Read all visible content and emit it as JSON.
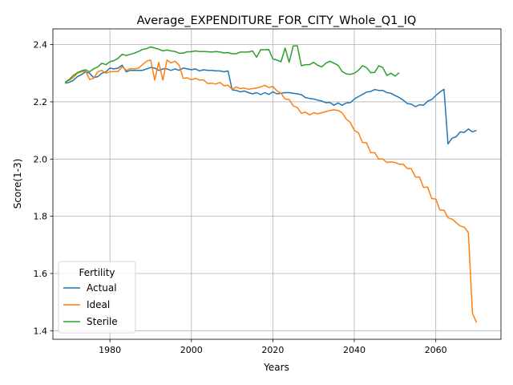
{
  "chart_data": {
    "type": "line",
    "title": "Average_EXPENDITURE_FOR_CITY_Whole_Q1_IQ",
    "xlabel": "Years",
    "ylabel": "Score(1-3)",
    "xlim": [
      1966,
      2076
    ],
    "ylim": [
      1.37,
      2.455
    ],
    "xticks": [
      1980,
      2000,
      2020,
      2040,
      2060
    ],
    "xtick_labels": [
      "1980",
      "2000",
      "2020",
      "2040",
      "2060"
    ],
    "yticks": [
      1.4,
      1.6,
      1.8,
      2.0,
      2.2,
      2.4
    ],
    "ytick_labels": [
      "1.4",
      "1.6",
      "1.8",
      "2.0",
      "2.2",
      "2.4"
    ],
    "grid": true,
    "legend": {
      "title": "Fertility",
      "position": "lower-left"
    },
    "series": [
      {
        "name": "Actual",
        "color": "#1f77b4",
        "points": [
          [
            1969,
            2.265
          ],
          [
            1970,
            2.268
          ],
          [
            1971,
            2.275
          ],
          [
            1972,
            2.288
          ],
          [
            1973,
            2.295
          ],
          [
            1974,
            2.305
          ],
          [
            1975,
            2.3
          ],
          [
            1976,
            2.285
          ],
          [
            1977,
            2.288
          ],
          [
            1978,
            2.3
          ],
          [
            1979,
            2.305
          ],
          [
            1980,
            2.318
          ],
          [
            1981,
            2.315
          ],
          [
            1982,
            2.318
          ],
          [
            1983,
            2.328
          ],
          [
            1984,
            2.305
          ],
          [
            1985,
            2.31
          ],
          [
            1986,
            2.31
          ],
          [
            1987,
            2.31
          ],
          [
            1988,
            2.31
          ],
          [
            1989,
            2.315
          ],
          [
            1990,
            2.32
          ],
          [
            1991,
            2.318
          ],
          [
            1992,
            2.31
          ],
          [
            1993,
            2.315
          ],
          [
            1994,
            2.315
          ],
          [
            1995,
            2.31
          ],
          [
            1996,
            2.315
          ],
          [
            1997,
            2.31
          ],
          [
            1998,
            2.318
          ],
          [
            1999,
            2.315
          ],
          [
            2000,
            2.312
          ],
          [
            2001,
            2.315
          ],
          [
            2002,
            2.308
          ],
          [
            2003,
            2.312
          ],
          [
            2004,
            2.31
          ],
          [
            2005,
            2.31
          ],
          [
            2006,
            2.308
          ],
          [
            2007,
            2.308
          ],
          [
            2008,
            2.305
          ],
          [
            2009,
            2.308
          ],
          [
            2010,
            2.242
          ],
          [
            2011,
            2.24
          ],
          [
            2012,
            2.235
          ],
          [
            2013,
            2.238
          ],
          [
            2014,
            2.232
          ],
          [
            2015,
            2.228
          ],
          [
            2016,
            2.232
          ],
          [
            2017,
            2.225
          ],
          [
            2018,
            2.232
          ],
          [
            2019,
            2.226
          ],
          [
            2020,
            2.235
          ],
          [
            2021,
            2.228
          ],
          [
            2022,
            2.23
          ],
          [
            2023,
            2.232
          ],
          [
            2024,
            2.232
          ],
          [
            2025,
            2.23
          ],
          [
            2026,
            2.228
          ],
          [
            2027,
            2.225
          ],
          [
            2028,
            2.215
          ],
          [
            2029,
            2.212
          ],
          [
            2030,
            2.21
          ],
          [
            2031,
            2.206
          ],
          [
            2032,
            2.203
          ],
          [
            2033,
            2.197
          ],
          [
            2034,
            2.198
          ],
          [
            2035,
            2.188
          ],
          [
            2036,
            2.196
          ],
          [
            2037,
            2.188
          ],
          [
            2038,
            2.196
          ],
          [
            2039,
            2.197
          ],
          [
            2040,
            2.21
          ],
          [
            2041,
            2.218
          ],
          [
            2042,
            2.226
          ],
          [
            2043,
            2.234
          ],
          [
            2044,
            2.236
          ],
          [
            2045,
            2.243
          ],
          [
            2046,
            2.24
          ],
          [
            2047,
            2.24
          ],
          [
            2048,
            2.232
          ],
          [
            2049,
            2.23
          ],
          [
            2050,
            2.222
          ],
          [
            2051,
            2.215
          ],
          [
            2052,
            2.206
          ],
          [
            2053,
            2.194
          ],
          [
            2054,
            2.192
          ],
          [
            2055,
            2.183
          ],
          [
            2056,
            2.19
          ],
          [
            2057,
            2.188
          ],
          [
            2058,
            2.202
          ],
          [
            2059,
            2.208
          ],
          [
            2060,
            2.222
          ],
          [
            2061,
            2.234
          ],
          [
            2062,
            2.244
          ],
          [
            2063,
            2.053
          ],
          [
            2064,
            2.073
          ],
          [
            2065,
            2.078
          ],
          [
            2066,
            2.095
          ],
          [
            2067,
            2.093
          ],
          [
            2068,
            2.105
          ],
          [
            2069,
            2.095
          ],
          [
            2070,
            2.1
          ]
        ]
      },
      {
        "name": "Ideal",
        "color": "#ff7f0e",
        "points": [
          [
            1969,
            2.27
          ],
          [
            1970,
            2.275
          ],
          [
            1971,
            2.285
          ],
          [
            1972,
            2.3
          ],
          [
            1973,
            2.305
          ],
          [
            1974,
            2.308
          ],
          [
            1975,
            2.278
          ],
          [
            1976,
            2.282
          ],
          [
            1977,
            2.305
          ],
          [
            1978,
            2.31
          ],
          [
            1979,
            2.3
          ],
          [
            1980,
            2.305
          ],
          [
            1981,
            2.306
          ],
          [
            1982,
            2.306
          ],
          [
            1983,
            2.323
          ],
          [
            1984,
            2.31
          ],
          [
            1985,
            2.316
          ],
          [
            1986,
            2.315
          ],
          [
            1987,
            2.318
          ],
          [
            1988,
            2.33
          ],
          [
            1989,
            2.342
          ],
          [
            1990,
            2.346
          ],
          [
            1991,
            2.276
          ],
          [
            1992,
            2.338
          ],
          [
            1993,
            2.276
          ],
          [
            1994,
            2.346
          ],
          [
            1995,
            2.336
          ],
          [
            1996,
            2.342
          ],
          [
            1997,
            2.328
          ],
          [
            1998,
            2.282
          ],
          [
            1999,
            2.284
          ],
          [
            2000,
            2.277
          ],
          [
            2001,
            2.282
          ],
          [
            2002,
            2.276
          ],
          [
            2003,
            2.276
          ],
          [
            2004,
            2.264
          ],
          [
            2005,
            2.265
          ],
          [
            2006,
            2.262
          ],
          [
            2007,
            2.268
          ],
          [
            2008,
            2.256
          ],
          [
            2009,
            2.258
          ],
          [
            2010,
            2.244
          ],
          [
            2011,
            2.252
          ],
          [
            2012,
            2.246
          ],
          [
            2013,
            2.248
          ],
          [
            2014,
            2.244
          ],
          [
            2015,
            2.246
          ],
          [
            2016,
            2.248
          ],
          [
            2017,
            2.252
          ],
          [
            2018,
            2.258
          ],
          [
            2019,
            2.25
          ],
          [
            2020,
            2.254
          ],
          [
            2021,
            2.238
          ],
          [
            2022,
            2.23
          ],
          [
            2023,
            2.21
          ],
          [
            2024,
            2.208
          ],
          [
            2025,
            2.186
          ],
          [
            2026,
            2.18
          ],
          [
            2027,
            2.16
          ],
          [
            2028,
            2.164
          ],
          [
            2029,
            2.154
          ],
          [
            2030,
            2.162
          ],
          [
            2031,
            2.158
          ],
          [
            2032,
            2.162
          ],
          [
            2033,
            2.166
          ],
          [
            2034,
            2.17
          ],
          [
            2035,
            2.172
          ],
          [
            2036,
            2.17
          ],
          [
            2037,
            2.162
          ],
          [
            2038,
            2.14
          ],
          [
            2039,
            2.128
          ],
          [
            2040,
            2.1
          ],
          [
            2041,
            2.092
          ],
          [
            2042,
            2.058
          ],
          [
            2043,
            2.057
          ],
          [
            2044,
            2.022
          ],
          [
            2045,
            2.022
          ],
          [
            2046,
            2.0
          ],
          [
            2047,
            2.0
          ],
          [
            2048,
            1.988
          ],
          [
            2049,
            1.99
          ],
          [
            2050,
            1.988
          ],
          [
            2051,
            1.982
          ],
          [
            2052,
            1.982
          ],
          [
            2053,
            1.967
          ],
          [
            2054,
            1.966
          ],
          [
            2055,
            1.937
          ],
          [
            2056,
            1.937
          ],
          [
            2057,
            1.901
          ],
          [
            2058,
            1.902
          ],
          [
            2059,
            1.862
          ],
          [
            2060,
            1.86
          ],
          [
            2061,
            1.822
          ],
          [
            2062,
            1.821
          ],
          [
            2063,
            1.795
          ],
          [
            2064,
            1.79
          ],
          [
            2065,
            1.778
          ],
          [
            2066,
            1.766
          ],
          [
            2067,
            1.762
          ],
          [
            2068,
            1.743
          ],
          [
            2069,
            1.461
          ],
          [
            2070,
            1.428
          ]
        ]
      },
      {
        "name": "Sterile",
        "color": "#2ca02c",
        "points": [
          [
            1969,
            2.268
          ],
          [
            1970,
            2.278
          ],
          [
            1971,
            2.292
          ],
          [
            1972,
            2.302
          ],
          [
            1973,
            2.308
          ],
          [
            1974,
            2.312
          ],
          [
            1975,
            2.305
          ],
          [
            1976,
            2.315
          ],
          [
            1977,
            2.322
          ],
          [
            1978,
            2.335
          ],
          [
            1979,
            2.33
          ],
          [
            1980,
            2.34
          ],
          [
            1981,
            2.344
          ],
          [
            1982,
            2.352
          ],
          [
            1983,
            2.366
          ],
          [
            1984,
            2.362
          ],
          [
            1985,
            2.366
          ],
          [
            1986,
            2.37
          ],
          [
            1987,
            2.376
          ],
          [
            1988,
            2.383
          ],
          [
            1989,
            2.386
          ],
          [
            1990,
            2.392
          ],
          [
            1991,
            2.388
          ],
          [
            1992,
            2.384
          ],
          [
            1993,
            2.378
          ],
          [
            1994,
            2.381
          ],
          [
            1995,
            2.378
          ],
          [
            1996,
            2.376
          ],
          [
            1997,
            2.37
          ],
          [
            1998,
            2.37
          ],
          [
            1999,
            2.375
          ],
          [
            2000,
            2.375
          ],
          [
            2001,
            2.378
          ],
          [
            2002,
            2.376
          ],
          [
            2003,
            2.376
          ],
          [
            2004,
            2.375
          ],
          [
            2005,
            2.374
          ],
          [
            2006,
            2.376
          ],
          [
            2007,
            2.374
          ],
          [
            2008,
            2.371
          ],
          [
            2009,
            2.372
          ],
          [
            2010,
            2.368
          ],
          [
            2011,
            2.368
          ],
          [
            2012,
            2.374
          ],
          [
            2013,
            2.374
          ],
          [
            2014,
            2.374
          ],
          [
            2015,
            2.378
          ],
          [
            2016,
            2.356
          ],
          [
            2017,
            2.382
          ],
          [
            2018,
            2.382
          ],
          [
            2019,
            2.383
          ],
          [
            2020,
            2.35
          ],
          [
            2021,
            2.346
          ],
          [
            2022,
            2.34
          ],
          [
            2023,
            2.388
          ],
          [
            2024,
            2.338
          ],
          [
            2025,
            2.395
          ],
          [
            2026,
            2.396
          ],
          [
            2027,
            2.326
          ],
          [
            2028,
            2.33
          ],
          [
            2029,
            2.33
          ],
          [
            2030,
            2.338
          ],
          [
            2031,
            2.328
          ],
          [
            2032,
            2.322
          ],
          [
            2033,
            2.335
          ],
          [
            2034,
            2.342
          ],
          [
            2035,
            2.335
          ],
          [
            2036,
            2.328
          ],
          [
            2037,
            2.306
          ],
          [
            2038,
            2.298
          ],
          [
            2039,
            2.296
          ],
          [
            2040,
            2.3
          ],
          [
            2041,
            2.31
          ],
          [
            2042,
            2.326
          ],
          [
            2043,
            2.32
          ],
          [
            2044,
            2.302
          ],
          [
            2045,
            2.303
          ],
          [
            2046,
            2.326
          ],
          [
            2047,
            2.32
          ],
          [
            2048,
            2.292
          ],
          [
            2049,
            2.3
          ],
          [
            2050,
            2.29
          ],
          [
            2051,
            2.302
          ]
        ]
      }
    ]
  }
}
